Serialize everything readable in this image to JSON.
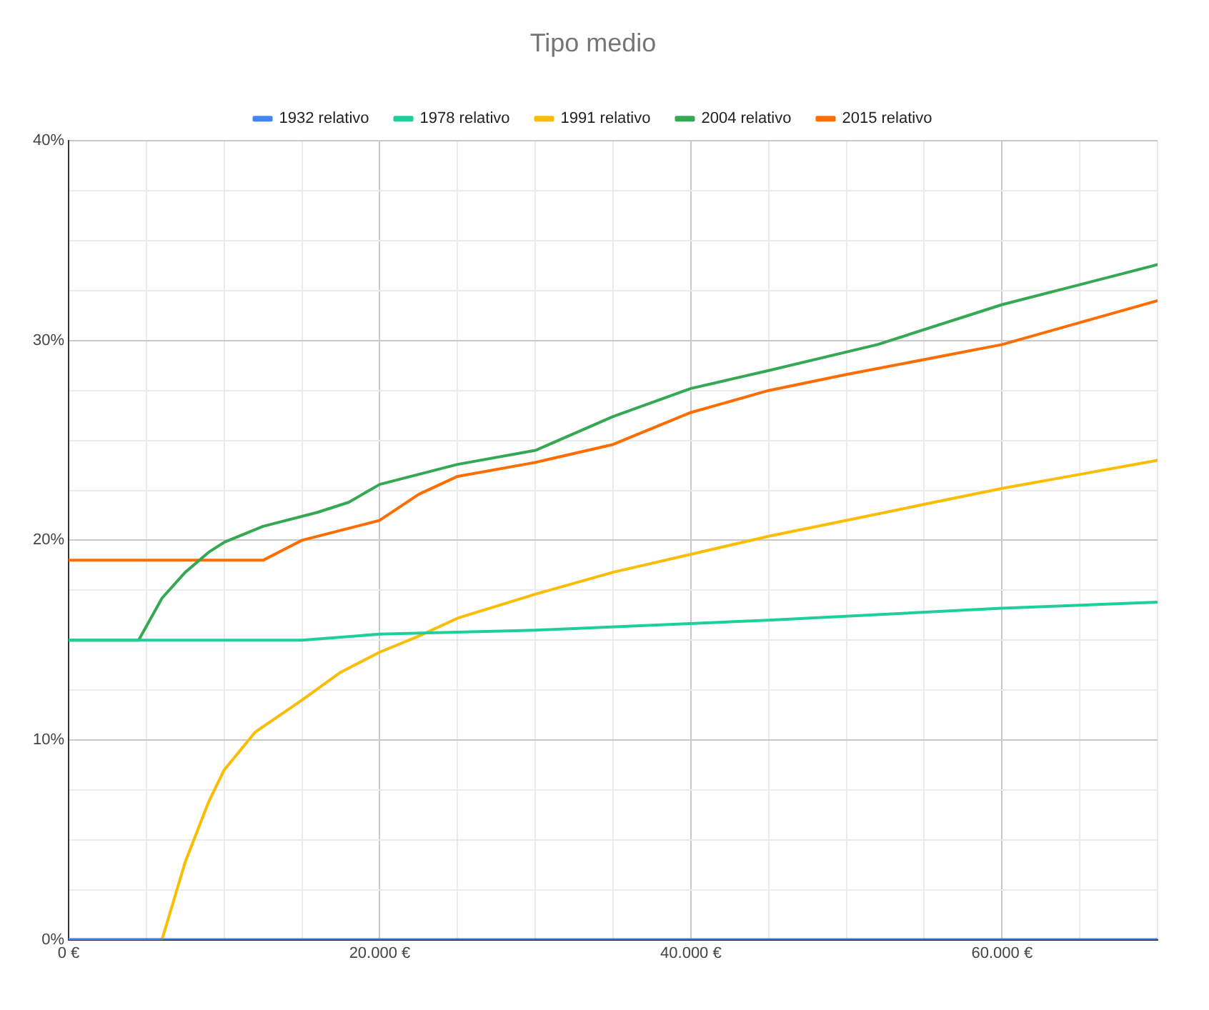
{
  "chart_data": {
    "type": "line",
    "title": "Tipo medio",
    "legend": "top",
    "grid": true,
    "marker": "none",
    "line_style": "solid",
    "xlim": [
      0,
      70000
    ],
    "ylim": [
      0,
      40
    ],
    "xticks": [
      {
        "value": 0,
        "label": "0 €"
      },
      {
        "value": 5000,
        "label": null
      },
      {
        "value": 10000,
        "label": null
      },
      {
        "value": 15000,
        "label": null
      },
      {
        "value": 20000,
        "label": "20.000 €"
      },
      {
        "value": 25000,
        "label": null
      },
      {
        "value": 30000,
        "label": null
      },
      {
        "value": 35000,
        "label": null
      },
      {
        "value": 40000,
        "label": "40.000 €"
      },
      {
        "value": 45000,
        "label": null
      },
      {
        "value": 50000,
        "label": null
      },
      {
        "value": 55000,
        "label": null
      },
      {
        "value": 60000,
        "label": "60.000 €"
      },
      {
        "value": 65000,
        "label": null
      },
      {
        "value": 70000,
        "label": null
      }
    ],
    "yticks": [
      {
        "value": 0,
        "label": "0%"
      },
      {
        "value": 2.5,
        "label": null
      },
      {
        "value": 5,
        "label": null
      },
      {
        "value": 7.5,
        "label": null
      },
      {
        "value": 10,
        "label": "10%"
      },
      {
        "value": 12.5,
        "label": null
      },
      {
        "value": 15,
        "label": null
      },
      {
        "value": 17.5,
        "label": null
      },
      {
        "value": 20,
        "label": "20%"
      },
      {
        "value": 22.5,
        "label": null
      },
      {
        "value": 25,
        "label": null
      },
      {
        "value": 27.5,
        "label": null
      },
      {
        "value": 30,
        "label": "30%"
      },
      {
        "value": 32.5,
        "label": null
      },
      {
        "value": 35,
        "label": null
      },
      {
        "value": 37.5,
        "label": null
      },
      {
        "value": 40,
        "label": "40%"
      }
    ],
    "series": [
      {
        "name": "1932 relativo",
        "color": "#4285f4",
        "x": [
          0,
          70000
        ],
        "values": [
          0,
          0
        ]
      },
      {
        "name": "1978 relativo",
        "color": "#1ecf9b",
        "x": [
          0,
          15000,
          20000,
          30000,
          45000,
          60000,
          70000
        ],
        "values": [
          15,
          15,
          15.3,
          15.5,
          16.0,
          16.6,
          16.9
        ]
      },
      {
        "name": "1991 relativo",
        "color": "#fbbc04",
        "x": [
          0,
          6000,
          7500,
          9000,
          10000,
          12000,
          15000,
          17500,
          20000,
          22500,
          25000,
          30000,
          35000,
          40000,
          45000,
          50000,
          55000,
          60000,
          65000,
          70000
        ],
        "values": [
          0,
          0,
          3.9,
          6.9,
          8.5,
          10.4,
          12.0,
          13.4,
          14.4,
          15.2,
          16.1,
          17.3,
          18.4,
          19.3,
          20.2,
          21.0,
          21.8,
          22.6,
          23.3,
          24.0
        ]
      },
      {
        "name": "2004 relativo",
        "color": "#34a853",
        "x": [
          0,
          4500,
          6000,
          7500,
          9000,
          10000,
          12500,
          16000,
          18000,
          20000,
          25000,
          30000,
          35000,
          40000,
          45000,
          52000,
          60000,
          70000
        ],
        "values": [
          15,
          15,
          17.1,
          18.4,
          19.4,
          19.9,
          20.7,
          21.4,
          21.9,
          22.8,
          23.8,
          24.5,
          26.2,
          27.6,
          28.5,
          29.8,
          31.8,
          33.8
        ]
      },
      {
        "name": "2015 relativo",
        "color": "#ff6d01",
        "x": [
          0,
          12500,
          15000,
          20000,
          22500,
          25000,
          30000,
          35000,
          40000,
          45000,
          50000,
          60000,
          65000,
          70000
        ],
        "values": [
          19,
          19,
          20.0,
          21.0,
          22.3,
          23.2,
          23.9,
          24.8,
          26.4,
          27.5,
          28.3,
          29.8,
          30.9,
          32.0
        ]
      }
    ]
  }
}
